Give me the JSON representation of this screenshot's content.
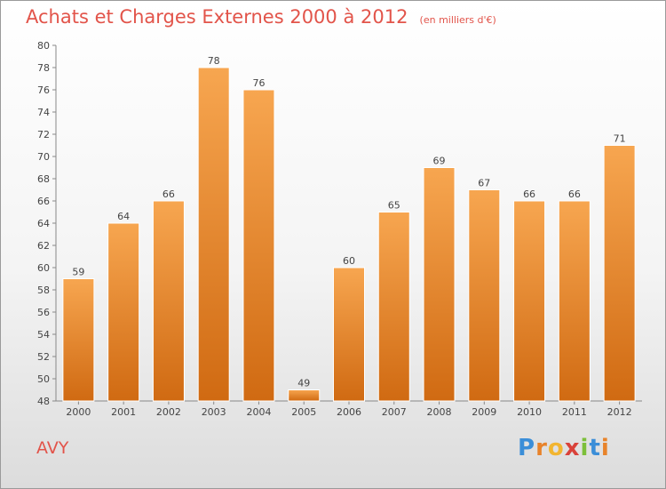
{
  "title": "Achats et Charges Externes 2000 à 2012",
  "subtitle": "(en milliers d'€)",
  "commune": "AVY",
  "logo": {
    "text": "Proxiti",
    "letters": [
      "P",
      "r",
      "o",
      "x",
      "i",
      "t",
      "i"
    ],
    "colors": [
      "#3b8ed8",
      "#e8832a",
      "#f2b530",
      "#d9423a",
      "#7cbf3a",
      "#3b8ed8",
      "#e8832a"
    ]
  },
  "colors": {
    "bar_top": "#f7a650",
    "bar_bottom": "#d06a12",
    "text": "#444444",
    "title": "#e2544a"
  },
  "chart_data": {
    "type": "bar",
    "categories": [
      "2000",
      "2001",
      "2002",
      "2003",
      "2004",
      "2005",
      "2006",
      "2007",
      "2008",
      "2009",
      "2010",
      "2011",
      "2012"
    ],
    "values": [
      59,
      64,
      66,
      78,
      76,
      49,
      60,
      65,
      69,
      67,
      66,
      66,
      71
    ],
    "ylim": [
      48,
      80
    ],
    "yticks": [
      48,
      50,
      52,
      54,
      56,
      58,
      60,
      62,
      64,
      66,
      68,
      70,
      72,
      74,
      76,
      78,
      80
    ],
    "grid": false,
    "data_labels": true
  }
}
